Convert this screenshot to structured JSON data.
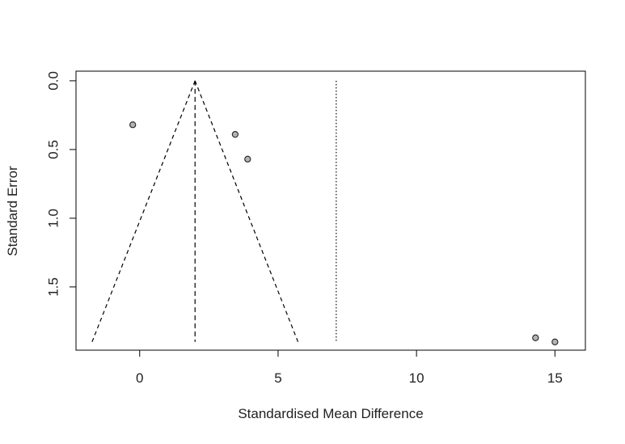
{
  "chart_data": {
    "type": "scatter",
    "title": "",
    "xlabel": "Standardised Mean Difference",
    "ylabel": "Standard Error",
    "xlim": [
      -2.3,
      16.1
    ],
    "ylim": [
      1.96,
      -0.07
    ],
    "y_inverted": true,
    "x_ticks": [
      0,
      5,
      10,
      15
    ],
    "x_tick_labels": [
      "0",
      "5",
      "10",
      "15"
    ],
    "y_ticks": [
      0.0,
      0.5,
      1.0,
      1.5
    ],
    "y_tick_labels": [
      "0.0",
      "0.5",
      "1.0",
      "1.5"
    ],
    "grid": false,
    "points": [
      {
        "x": -0.25,
        "y": 0.32
      },
      {
        "x": 3.45,
        "y": 0.39
      },
      {
        "x": 3.9,
        "y": 0.57
      },
      {
        "x": 14.3,
        "y": 1.87
      },
      {
        "x": 15.0,
        "y": 1.9
      }
    ],
    "funnel": {
      "apex": {
        "x": 2.0,
        "y": 0.0
      },
      "left_base": {
        "x": -1.72,
        "y": 1.9
      },
      "right_base": {
        "x": 5.72,
        "y": 1.9
      }
    },
    "reference_lines": [
      {
        "style": "dashed",
        "x": 2.0,
        "y_range": [
          0.0,
          1.9
        ]
      },
      {
        "style": "dotted",
        "x": 7.1,
        "y_range": [
          0.0,
          1.9
        ]
      }
    ],
    "colors": {
      "point_fill": "#b3b3b3",
      "point_stroke": "#222222",
      "axis": "#000000"
    }
  }
}
